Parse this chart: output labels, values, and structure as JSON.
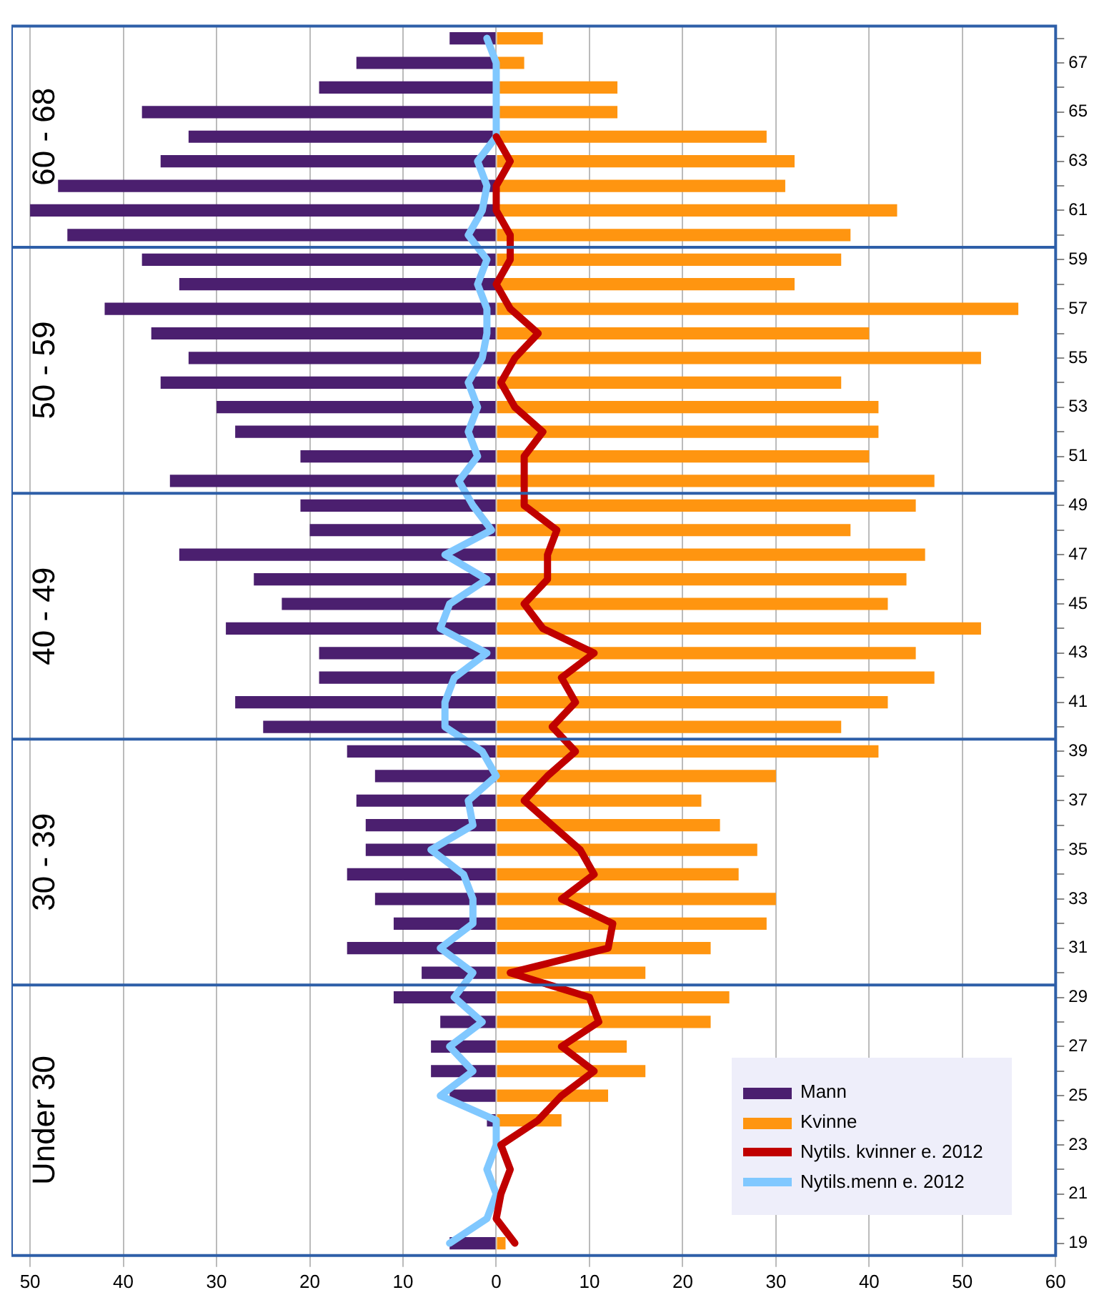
{
  "chart_data": {
    "type": "bar",
    "orientation": "horizontal",
    "stacked": true,
    "x": [
      68,
      67,
      66,
      65,
      64,
      63,
      62,
      61,
      60,
      59,
      58,
      57,
      56,
      55,
      54,
      53,
      52,
      51,
      50,
      49,
      48,
      47,
      46,
      45,
      44,
      43,
      42,
      41,
      40,
      39,
      38,
      37,
      36,
      35,
      34,
      33,
      32,
      31,
      30,
      29,
      28,
      27,
      26,
      25,
      24,
      23,
      22,
      21,
      20,
      19
    ],
    "series": [
      {
        "name": "Mann",
        "type": "bar",
        "color": "#4b1f6f",
        "values": [
          -5,
          -15,
          -19,
          -38,
          -33,
          -36,
          -47,
          -50,
          -46,
          -38,
          -34,
          -42,
          -37,
          -33,
          -36,
          -30,
          -28,
          -21,
          -35,
          -21,
          -20,
          -34,
          -26,
          -23,
          -29,
          -19,
          -19,
          -28,
          -25,
          -16,
          -13,
          -15,
          -14,
          -14,
          -16,
          -13,
          -11,
          -16,
          -8,
          -11,
          -6,
          -7,
          -7,
          -5,
          -1,
          0,
          0,
          0,
          0,
          -5
        ]
      },
      {
        "name": "Kvinne",
        "type": "bar",
        "color": "#ff9510",
        "values": [
          5,
          3,
          13,
          13,
          29,
          32,
          31,
          43,
          38,
          37,
          32,
          56,
          40,
          52,
          37,
          41,
          41,
          40,
          47,
          45,
          38,
          46,
          44,
          42,
          52,
          45,
          47,
          42,
          37,
          41,
          30,
          22,
          24,
          28,
          26,
          30,
          29,
          23,
          16,
          25,
          23,
          14,
          16,
          12,
          7,
          0,
          0,
          0,
          0,
          1
        ]
      },
      {
        "name": "Nytils. kvinner e. 2012",
        "type": "line",
        "color": "#c00000",
        "values": [
          null,
          null,
          null,
          null,
          0,
          1.5,
          0,
          0,
          1.5,
          1.5,
          0,
          1.5,
          4.5,
          2,
          0.5,
          2,
          5,
          3,
          3,
          3,
          6.5,
          5.5,
          5.5,
          3,
          5,
          10.5,
          7,
          8.5,
          6,
          8.5,
          5.5,
          3,
          6,
          9,
          10.5,
          7,
          12.5,
          12,
          1.5,
          10,
          11,
          7,
          10.5,
          7,
          4.5,
          0.5,
          1.5,
          0.5,
          0,
          2
        ]
      },
      {
        "name": "Nytils.menn e. 2012",
        "type": "line",
        "color": "#80c8ff",
        "values": [
          -1,
          0,
          0,
          0,
          0,
          -2,
          -1,
          -1.5,
          -3,
          -1,
          -2,
          -1,
          -1,
          -1.5,
          -3,
          -2,
          -3,
          -2,
          -4,
          -2.5,
          -0.5,
          -5.5,
          -1,
          -5,
          -6,
          -1,
          -4.5,
          -5.5,
          -5.5,
          -1.5,
          0,
          -3,
          -2.5,
          -7,
          -3.5,
          -2.5,
          -2.5,
          -6,
          -2.5,
          -4.5,
          -1.5,
          -5,
          -2.5,
          -6,
          0,
          0,
          -1,
          0,
          -1,
          -5
        ]
      }
    ],
    "xlim": [
      -52,
      60
    ],
    "xticks": [
      {
        "value": -50,
        "label": "50"
      },
      {
        "value": -40,
        "label": "40"
      },
      {
        "value": -30,
        "label": "30"
      },
      {
        "value": -20,
        "label": "20"
      },
      {
        "value": -10,
        "label": "10"
      },
      0,
      10,
      20,
      30,
      40,
      50,
      60
    ],
    "ylim": [
      18.5,
      68.5
    ],
    "yticks": [
      19,
      {
        "value": 20,
        "label": null
      },
      21,
      {
        "value": 22,
        "label": null
      },
      23,
      {
        "value": 24,
        "label": null
      },
      25,
      {
        "value": 26,
        "label": null
      },
      27,
      {
        "value": 28,
        "label": null
      },
      29,
      {
        "value": 30,
        "label": null
      },
      31,
      {
        "value": 32,
        "label": null
      },
      33,
      {
        "value": 34,
        "label": null
      },
      35,
      {
        "value": 36,
        "label": null
      },
      37,
      {
        "value": 38,
        "label": null
      },
      39,
      {
        "value": 40,
        "label": null
      },
      41,
      {
        "value": 42,
        "label": null
      },
      43,
      {
        "value": 44,
        "label": null
      },
      45,
      {
        "value": 46,
        "label": null
      },
      47,
      {
        "value": 48,
        "label": null
      },
      49,
      {
        "value": 50,
        "label": null
      },
      51,
      {
        "value": 52,
        "label": null
      },
      53,
      {
        "value": 54,
        "label": null
      },
      55,
      {
        "value": 56,
        "label": null
      },
      57,
      {
        "value": 58,
        "label": null
      },
      59,
      {
        "value": 60,
        "label": null
      },
      61,
      {
        "value": 62,
        "label": null
      },
      63,
      {
        "value": 64,
        "label": null
      },
      65,
      {
        "value": 66,
        "label": null
      },
      67,
      {
        "value": 68,
        "label": null
      }
    ],
    "ref_lines": [
      {
        "axis": "y",
        "value": 59.5,
        "color": "#2e5fa8"
      },
      {
        "axis": "y",
        "value": 49.5,
        "color": "#2e5fa8"
      },
      {
        "axis": "y",
        "value": 39.5,
        "color": "#2e5fa8"
      },
      {
        "axis": "y",
        "value": 29.5,
        "color": "#2e5fa8"
      }
    ],
    "annotations": [
      "60 - 68",
      "50 - 59",
      "40 - 49",
      "30 - 39",
      "Under 30"
    ],
    "grid": "x",
    "legend": "bottom right",
    "line_style": "solid",
    "marker": "none"
  }
}
